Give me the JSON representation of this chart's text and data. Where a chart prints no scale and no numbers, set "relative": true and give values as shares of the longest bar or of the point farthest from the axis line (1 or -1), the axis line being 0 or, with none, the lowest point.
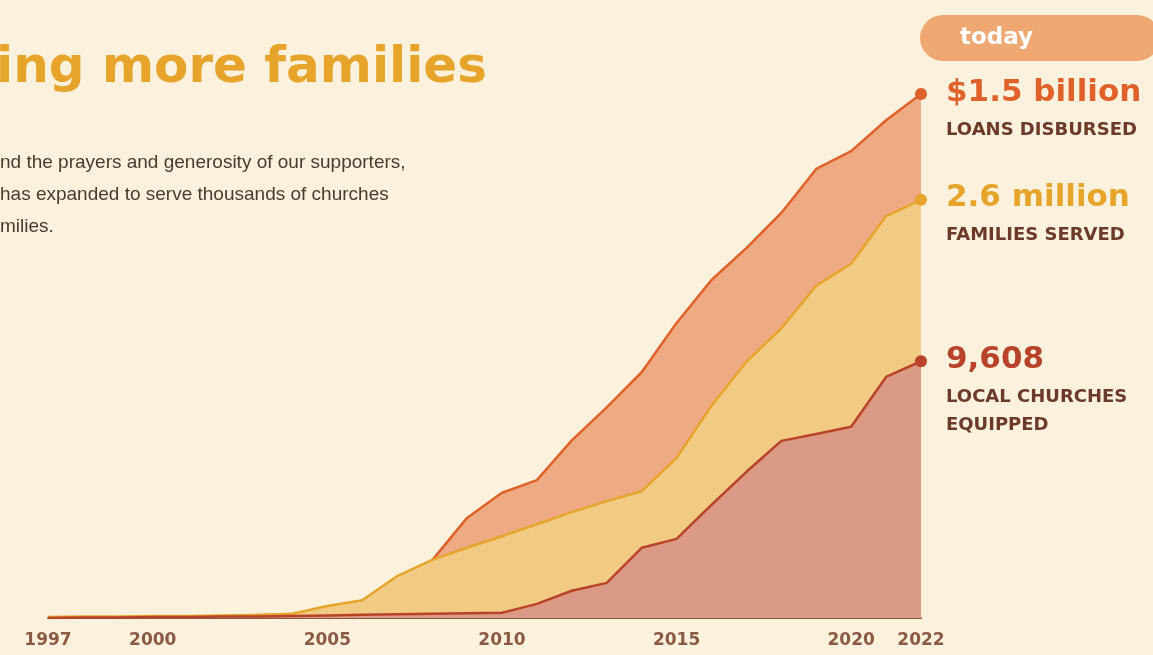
{
  "chart_data": {
    "type": "area",
    "relative": true,
    "title": "ing more families",
    "subtitle": "nd the prayers and generosity of our supporters,\nhas expanded to serve thousands of churches\nmilies.",
    "x": [
      1997,
      1998,
      1999,
      2000,
      2001,
      2002,
      2003,
      2004,
      2005,
      2006,
      2007,
      2008,
      2009,
      2010,
      2011,
      2012,
      2013,
      2014,
      2015,
      2016,
      2017,
      2018,
      2019,
      2020,
      2021,
      2022
    ],
    "xlim": [
      1997,
      2022
    ],
    "xticks": [
      1997,
      2000,
      2005,
      2010,
      2015,
      2020,
      2022
    ],
    "series": [
      {
        "color": "#e0622a",
        "values": [
          null,
          null,
          null,
          null,
          null,
          null,
          null,
          null,
          null,
          null,
          null,
          0.11,
          0.191,
          0.239,
          0.263,
          0.339,
          0.402,
          0.469,
          0.563,
          0.645,
          0.706,
          0.773,
          0.857,
          0.891,
          0.95,
          1
        ]
      },
      {
        "color": "#e6a52a",
        "values": [
          0.002,
          0.003,
          0.003,
          0.004,
          0.004,
          0.005,
          0.006,
          0.008,
          0.023,
          0.034,
          0.08,
          0.111,
          0.134,
          0.156,
          0.179,
          0.202,
          0.223,
          0.242,
          0.305,
          0.405,
          0.489,
          0.553,
          0.634,
          0.676,
          0.767,
          0.798
        ]
      },
      {
        "color": "#b8432a",
        "values": [
          0,
          0.001,
          0.001,
          0.002,
          0.002,
          0.003,
          0.003,
          0.004,
          0.005,
          0.006,
          0.007,
          0.008,
          0.009,
          0.01,
          0.027,
          0.052,
          0.067,
          0.134,
          0.151,
          0.216,
          0.279,
          0.338,
          0.351,
          0.365,
          0.46,
          0.49
        ]
      }
    ],
    "annotations": [
      "today",
      "$1.5 billion",
      "LOANS DISBURSED",
      "2.6 million",
      "FAMILIES SERVED",
      "9,608",
      "LOCAL CHURCHES\nEQUIPPED"
    ]
  }
}
